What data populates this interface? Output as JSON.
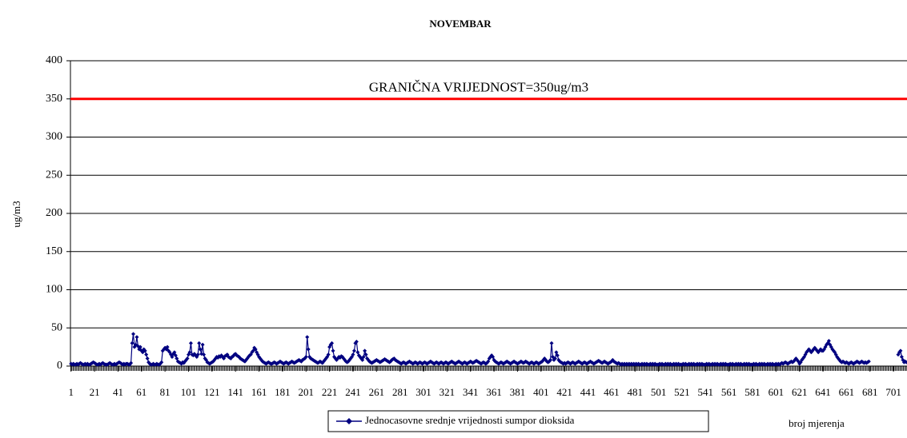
{
  "chart_data": {
    "type": "line",
    "title": "NOVEMBAR",
    "y_label": "ug/m3",
    "x_label": "broj mjerenja",
    "xlim": [
      0.5,
      712.5
    ],
    "xticks": [
      1,
      21,
      41,
      61,
      81,
      101,
      121,
      141,
      161,
      181,
      201,
      221,
      241,
      261,
      281,
      301,
      321,
      341,
      361,
      381,
      401,
      421,
      441,
      461,
      481,
      501,
      521,
      541,
      561,
      581,
      601,
      621,
      641,
      661,
      681,
      701
    ],
    "ylim": [
      0,
      400
    ],
    "yticks": [
      0,
      50,
      100,
      150,
      200,
      250,
      300,
      350,
      400
    ],
    "grid": true,
    "threshold": {
      "value": 350,
      "label": "GRANIČNA VRIJEDNOST=350ug/m3",
      "color": "#ff0000"
    },
    "series": [
      {
        "name": "Jednocasovne srednje vrijednosti sumpor dioksida",
        "color": "#000080",
        "values": [
          3,
          2,
          3,
          2,
          2,
          3,
          2,
          3,
          4,
          3,
          2,
          2,
          3,
          2,
          3,
          2,
          2,
          3,
          4,
          5,
          4,
          3,
          2,
          2,
          3,
          2,
          3,
          4,
          3,
          2,
          2,
          2,
          3,
          4,
          3,
          2,
          2,
          3,
          2,
          3,
          4,
          5,
          4,
          3,
          2,
          3,
          2,
          3,
          3,
          2,
          2,
          4,
          30,
          42,
          25,
          28,
          38,
          26,
          22,
          25,
          20,
          18,
          22,
          20,
          15,
          10,
          5,
          3,
          2,
          2,
          3,
          2,
          2,
          3,
          2,
          2,
          3,
          5,
          20,
          22,
          24,
          22,
          25,
          20,
          18,
          15,
          12,
          16,
          18,
          14,
          10,
          6,
          5,
          4,
          3,
          5,
          4,
          6,
          8,
          10,
          15,
          18,
          30,
          15,
          14,
          16,
          14,
          12,
          15,
          30,
          22,
          16,
          28,
          15,
          10,
          8,
          5,
          4,
          3,
          4,
          5,
          6,
          8,
          10,
          12,
          11,
          13,
          12,
          14,
          12,
          10,
          13,
          14,
          15,
          12,
          11,
          10,
          12,
          13,
          15,
          16,
          14,
          13,
          12,
          10,
          9,
          8,
          7,
          6,
          8,
          10,
          12,
          14,
          15,
          18,
          20,
          24,
          22,
          18,
          15,
          12,
          10,
          8,
          6,
          5,
          4,
          3,
          4,
          5,
          4,
          3,
          3,
          4,
          5,
          4,
          3,
          4,
          5,
          6,
          5,
          4,
          3,
          4,
          5,
          4,
          3,
          4,
          5,
          6,
          5,
          4,
          5,
          6,
          7,
          8,
          7,
          6,
          8,
          9,
          10,
          12,
          38,
          22,
          12,
          10,
          9,
          8,
          7,
          6,
          5,
          4,
          5,
          6,
          5,
          4,
          6,
          8,
          10,
          12,
          15,
          25,
          28,
          30,
          20,
          12,
          10,
          8,
          10,
          12,
          11,
          13,
          12,
          10,
          8,
          6,
          5,
          6,
          8,
          10,
          12,
          15,
          20,
          30,
          32,
          18,
          14,
          12,
          10,
          8,
          12,
          20,
          15,
          10,
          8,
          6,
          5,
          4,
          5,
          6,
          7,
          8,
          7,
          6,
          5,
          6,
          7,
          8,
          9,
          8,
          7,
          6,
          5,
          6,
          8,
          9,
          10,
          8,
          7,
          6,
          5,
          4,
          3,
          4,
          5,
          4,
          3,
          4,
          5,
          6,
          5,
          4,
          3,
          4,
          5,
          4,
          3,
          4,
          5,
          4,
          3,
          4,
          5,
          4,
          3,
          4,
          5,
          6,
          5,
          4,
          3,
          4,
          5,
          4,
          3,
          4,
          5,
          4,
          3,
          4,
          5,
          4,
          3,
          4,
          5,
          6,
          5,
          4,
          3,
          4,
          5,
          6,
          5,
          4,
          3,
          4,
          5,
          4,
          3,
          4,
          5,
          6,
          5,
          4,
          5,
          6,
          7,
          6,
          5,
          4,
          3,
          4,
          5,
          4,
          3,
          4,
          6,
          10,
          12,
          14,
          12,
          8,
          6,
          5,
          4,
          3,
          4,
          5,
          4,
          3,
          4,
          5,
          6,
          5,
          4,
          3,
          4,
          5,
          6,
          5,
          4,
          3,
          4,
          5,
          6,
          5,
          4,
          5,
          6,
          5,
          4,
          3,
          4,
          5,
          4,
          3,
          4,
          5,
          4,
          3,
          4,
          5,
          6,
          8,
          10,
          8,
          6,
          5,
          6,
          8,
          30,
          12,
          8,
          10,
          18,
          14,
          8,
          6,
          5,
          4,
          3,
          4,
          3,
          4,
          5,
          4,
          3,
          4,
          5,
          4,
          3,
          4,
          5,
          6,
          5,
          4,
          3,
          4,
          5,
          4,
          3,
          4,
          5,
          6,
          5,
          4,
          3,
          4,
          5,
          6,
          7,
          6,
          5,
          4,
          5,
          6,
          5,
          4,
          3,
          4,
          5,
          6,
          8,
          6,
          5,
          4,
          3,
          4,
          3,
          2,
          3,
          2,
          3,
          2,
          3,
          2,
          3,
          2,
          3,
          2,
          3,
          2,
          3,
          2,
          3,
          2,
          2,
          3,
          2,
          3,
          2,
          3,
          2,
          2,
          3,
          2,
          3,
          2,
          3,
          2,
          2,
          2,
          3,
          2,
          3,
          2,
          2,
          3,
          2,
          3,
          2,
          3,
          2,
          2,
          3,
          2,
          3,
          2,
          3,
          2,
          2,
          2,
          3,
          2,
          3,
          2,
          2,
          3,
          2,
          3,
          2,
          3,
          2,
          2,
          3,
          2,
          3,
          2,
          3,
          2,
          2,
          2,
          3,
          2,
          3,
          2,
          2,
          3,
          2,
          3,
          2,
          3,
          2,
          2,
          3,
          2,
          3,
          2,
          3,
          2,
          2,
          2,
          3,
          2,
          3,
          2,
          2,
          3,
          2,
          3,
          2,
          3,
          2,
          2,
          3,
          2,
          3,
          2,
          3,
          2,
          2,
          2,
          3,
          2,
          3,
          2,
          2,
          3,
          2,
          3,
          2,
          3,
          2,
          2,
          3,
          2,
          3,
          2,
          3,
          2,
          2,
          3,
          2,
          3,
          2,
          3,
          4,
          3,
          4,
          5,
          4,
          3,
          4,
          5,
          6,
          5,
          6,
          8,
          10,
          8,
          6,
          3,
          5,
          8,
          10,
          12,
          15,
          18,
          20,
          22,
          20,
          18,
          20,
          22,
          24,
          22,
          20,
          18,
          20,
          22,
          20,
          20,
          22,
          25,
          28,
          30,
          33,
          28,
          25,
          22,
          20,
          18,
          15,
          12,
          10,
          8,
          6,
          5,
          6,
          5,
          4,
          5,
          4,
          3,
          4,
          5,
          4,
          3,
          4,
          5,
          6,
          5,
          4,
          5,
          6,
          5,
          4,
          5,
          4,
          5,
          6,
          null,
          null,
          null,
          null,
          null,
          null,
          null,
          null,
          null,
          null,
          null,
          null,
          null,
          null,
          null,
          null,
          null,
          null,
          null,
          null,
          null,
          null,
          null,
          null,
          15,
          18,
          20,
          12,
          8,
          5,
          6,
          5
        ]
      }
    ]
  }
}
